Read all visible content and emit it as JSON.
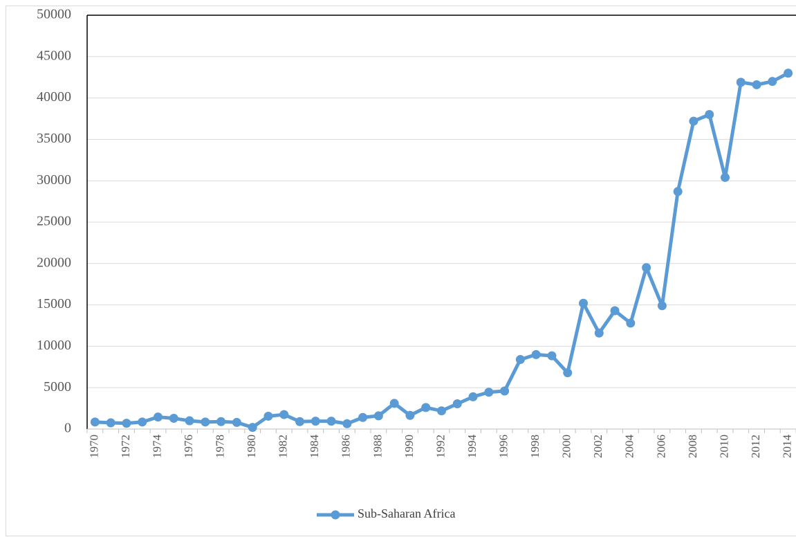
{
  "chart_data": {
    "type": "line",
    "categories": [
      "1970",
      null,
      "1972",
      null,
      "1974",
      null,
      "1976",
      null,
      "1978",
      null,
      "1980",
      null,
      "1982",
      null,
      "1984",
      null,
      "1986",
      null,
      "1988",
      null,
      "1990",
      null,
      "1992",
      null,
      "1994",
      null,
      "1996",
      null,
      "1998",
      null,
      "2000",
      null,
      "2002",
      null,
      "2004",
      null,
      "2006",
      null,
      "2008",
      null,
      "2010",
      null,
      "2012",
      null,
      "2014"
    ],
    "series": [
      {
        "name": "Sub-Saharan Africa",
        "color": "#5b9bd5",
        "values": [
          850,
          750,
          700,
          850,
          1450,
          1300,
          1000,
          850,
          900,
          800,
          200,
          1550,
          1750,
          900,
          950,
          950,
          650,
          1400,
          1600,
          3100,
          1650,
          2600,
          2200,
          3050,
          3900,
          4450,
          4600,
          8400,
          9000,
          8850,
          6800,
          15200,
          11600,
          14300,
          12800,
          19500,
          14900,
          28700,
          37200,
          38000,
          30400,
          41900,
          41600,
          42000,
          43000
        ]
      }
    ],
    "ylim": [
      0,
      50000
    ],
    "yticks": [
      0,
      5000,
      10000,
      15000,
      20000,
      25000,
      30000,
      35000,
      40000,
      45000,
      50000
    ],
    "grid": true,
    "legend": "bottom"
  }
}
